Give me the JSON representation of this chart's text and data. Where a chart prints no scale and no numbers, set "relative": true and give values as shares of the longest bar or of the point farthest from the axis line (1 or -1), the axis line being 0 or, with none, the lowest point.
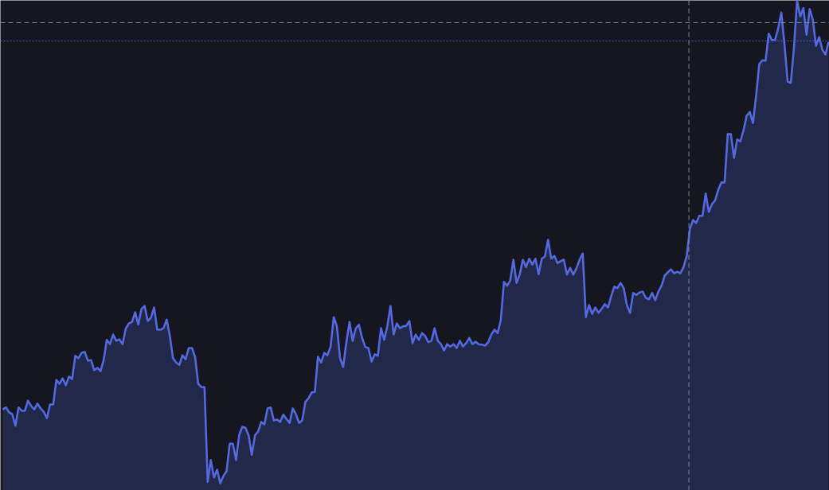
{
  "chart_data": {
    "type": "area",
    "relative": true,
    "categories": [
      null,
      null,
      null,
      null,
      null,
      null,
      null,
      null,
      null,
      null,
      null,
      null,
      null,
      null,
      null,
      null,
      null,
      null,
      null,
      null,
      null,
      null,
      null,
      null,
      null,
      null,
      null,
      null,
      null,
      null,
      null,
      null,
      null,
      null,
      null,
      null,
      null,
      null,
      null,
      null,
      null,
      null,
      null,
      null,
      null,
      null,
      null,
      null,
      null,
      null,
      null,
      null,
      null,
      null,
      null,
      null,
      null,
      null,
      null,
      null,
      null,
      null,
      null,
      null,
      null,
      null,
      null,
      null,
      null,
      null,
      null,
      null,
      null,
      null,
      null,
      null,
      null,
      null,
      null,
      null,
      null,
      null,
      null,
      null,
      null,
      null,
      null,
      null,
      null,
      null,
      null,
      null,
      null,
      null,
      null,
      null,
      null,
      null,
      null,
      null,
      null,
      null,
      null,
      null,
      null,
      null,
      null,
      null,
      null,
      null,
      null,
      null,
      null,
      null,
      null,
      null,
      null,
      null,
      null,
      null,
      null,
      null,
      null,
      null,
      null,
      null,
      null,
      null,
      null,
      null,
      null,
      null,
      null,
      null,
      null,
      null,
      null,
      null,
      null,
      null,
      null,
      null,
      null,
      null,
      null,
      null,
      null,
      null,
      null,
      null,
      null,
      null,
      null,
      null,
      null,
      null,
      null,
      null,
      null,
      null,
      null,
      null,
      null,
      null,
      null,
      null,
      null,
      null,
      null,
      null,
      null,
      null,
      null,
      null,
      null,
      null,
      null,
      null,
      null,
      null,
      null,
      null,
      null,
      null,
      null,
      null,
      null,
      null,
      null,
      null,
      null,
      null,
      null,
      null,
      null,
      null,
      null,
      null,
      null,
      null,
      null,
      null,
      null,
      null,
      null,
      null,
      null,
      null,
      null,
      null,
      null,
      null,
      null,
      null,
      null,
      null,
      null,
      null,
      null,
      null,
      null,
      null,
      null,
      null,
      null,
      null,
      null,
      null,
      null,
      null,
      null,
      null,
      null,
      null,
      null,
      null,
      null,
      null,
      null,
      null,
      null,
      null,
      null,
      null,
      null,
      null,
      null,
      null,
      null,
      null,
      null,
      null,
      null,
      null,
      null,
      null,
      null,
      null,
      null,
      null,
      null,
      null,
      null
    ],
    "series": [
      {
        "color": "#5468e0",
        "values": [
          0.153,
          0.157,
          0.147,
          0.143,
          0.119,
          0.157,
          0.15,
          0.15,
          0.171,
          0.16,
          0.153,
          0.165,
          0.155,
          0.148,
          0.135,
          0.163,
          0.163,
          0.214,
          0.206,
          0.217,
          0.203,
          0.221,
          0.216,
          0.264,
          0.259,
          0.27,
          0.272,
          0.254,
          0.255,
          0.234,
          0.239,
          0.232,
          0.255,
          0.297,
          0.288,
          0.308,
          0.295,
          0.298,
          0.288,
          0.32,
          0.331,
          0.334,
          0.354,
          0.329,
          0.361,
          0.367,
          0.336,
          0.343,
          0.364,
          0.318,
          0.318,
          0.321,
          0.339,
          0.305,
          0.259,
          0.25,
          0.245,
          0.265,
          0.257,
          0.28,
          0.28,
          0.262,
          0.206,
          0.199,
          0.199,
          0.003,
          0.048,
          0.012,
          0.028,
          0,
          0.015,
          0.025,
          0.082,
          0.082,
          0.048,
          0.1,
          0.117,
          0.115,
          0.099,
          0.059,
          0.099,
          0.107,
          0.127,
          0.122,
          0.155,
          0.157,
          0.13,
          0.132,
          0.127,
          0.142,
          0.133,
          0.125,
          0.155,
          0.143,
          0.125,
          0.13,
          0.168,
          0.176,
          0.188,
          0.189,
          0.262,
          0.25,
          0.27,
          0.265,
          0.283,
          0.344,
          0.325,
          0.259,
          0.241,
          0.292,
          0.334,
          0.295,
          0.321,
          0.328,
          0.301,
          0.282,
          0.28,
          0.252,
          0.267,
          0.264,
          0.321,
          0.297,
          0.325,
          0.367,
          0.308,
          0.331,
          0.321,
          0.325,
          0.326,
          0.336,
          0.29,
          0.308,
          0.297,
          0.311,
          0.305,
          0.292,
          0.295,
          0.321,
          0.295,
          0.288,
          0.275,
          0.288,
          0.283,
          0.288,
          0.28,
          0.295,
          0.283,
          0.29,
          0.301,
          0.288,
          0.293,
          0.288,
          0.287,
          0.285,
          0.292,
          0.308,
          0.318,
          0.311,
          0.338,
          0.417,
          0.409,
          0.42,
          0.463,
          0.415,
          0.432,
          0.463,
          0.448,
          0.465,
          0.453,
          0.465,
          0.433,
          0.465,
          0.47,
          0.504,
          0.465,
          0.471,
          0.456,
          0.46,
          0.463,
          0.432,
          0.446,
          0.432,
          0.445,
          0.463,
          0.476,
          0.344,
          0.369,
          0.351,
          0.364,
          0.353,
          0.361,
          0.371,
          0.364,
          0.387,
          0.407,
          0.404,
          0.415,
          0.404,
          0.369,
          0.353,
          0.394,
          0.39,
          0.395,
          0.397,
          0.384,
          0.381,
          0.394,
          0.379,
          0.397,
          0.409,
          0.43,
          0.437,
          0.443,
          0.435,
          0.438,
          0.435,
          0.448,
          0.471,
          0.527,
          0.545,
          0.539,
          0.554,
          0.554,
          0.6,
          0.562,
          0.578,
          0.586,
          0.608,
          0.623,
          0.623,
          0.723,
          0.723,
          0.674,
          0.712,
          0.708,
          0.731,
          0.761,
          0.769,
          0.746,
          0.802,
          0.868,
          0.876,
          0.875,
          0.931,
          0.918,
          0.918,
          0.942,
          0.975,
          0.909,
          0.832,
          0.829,
          0.901,
          1,
          0.967,
          0.984,
          0.929,
          0.982,
          0.96,
          0.906,
          0.924,
          0.898,
          0.888,
          0.914
        ]
      }
    ],
    "ref_lines": [
      {
        "axis": "y",
        "value": 0.954,
        "color": "#7f8a94",
        "line_style": "dashed"
      },
      {
        "axis": "y",
        "value": 0.916,
        "color": "#5563d9",
        "line_style": "dotted"
      }
    ]
  }
}
